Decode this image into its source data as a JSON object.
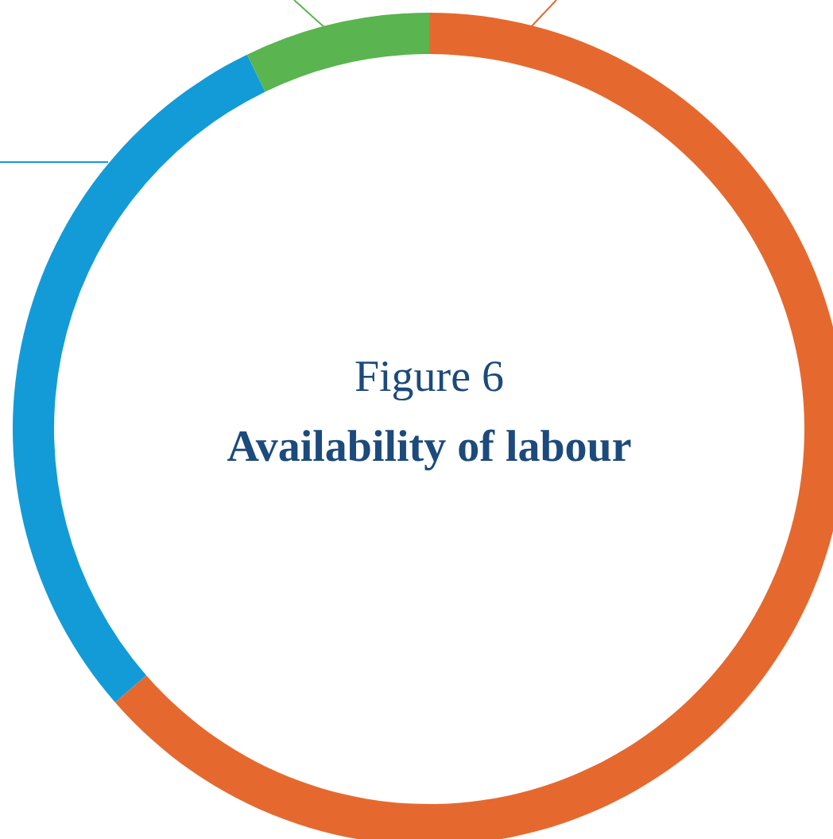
{
  "chart_data": {
    "type": "donut",
    "title": "Figure 6",
    "subtitle": "Availability of labour",
    "categories": [
      null,
      null,
      null
    ],
    "values": [
      63.6,
      29.2,
      7.2
    ],
    "colors": [
      "#e5692e",
      "#139bd7",
      "#5ab44f"
    ]
  }
}
